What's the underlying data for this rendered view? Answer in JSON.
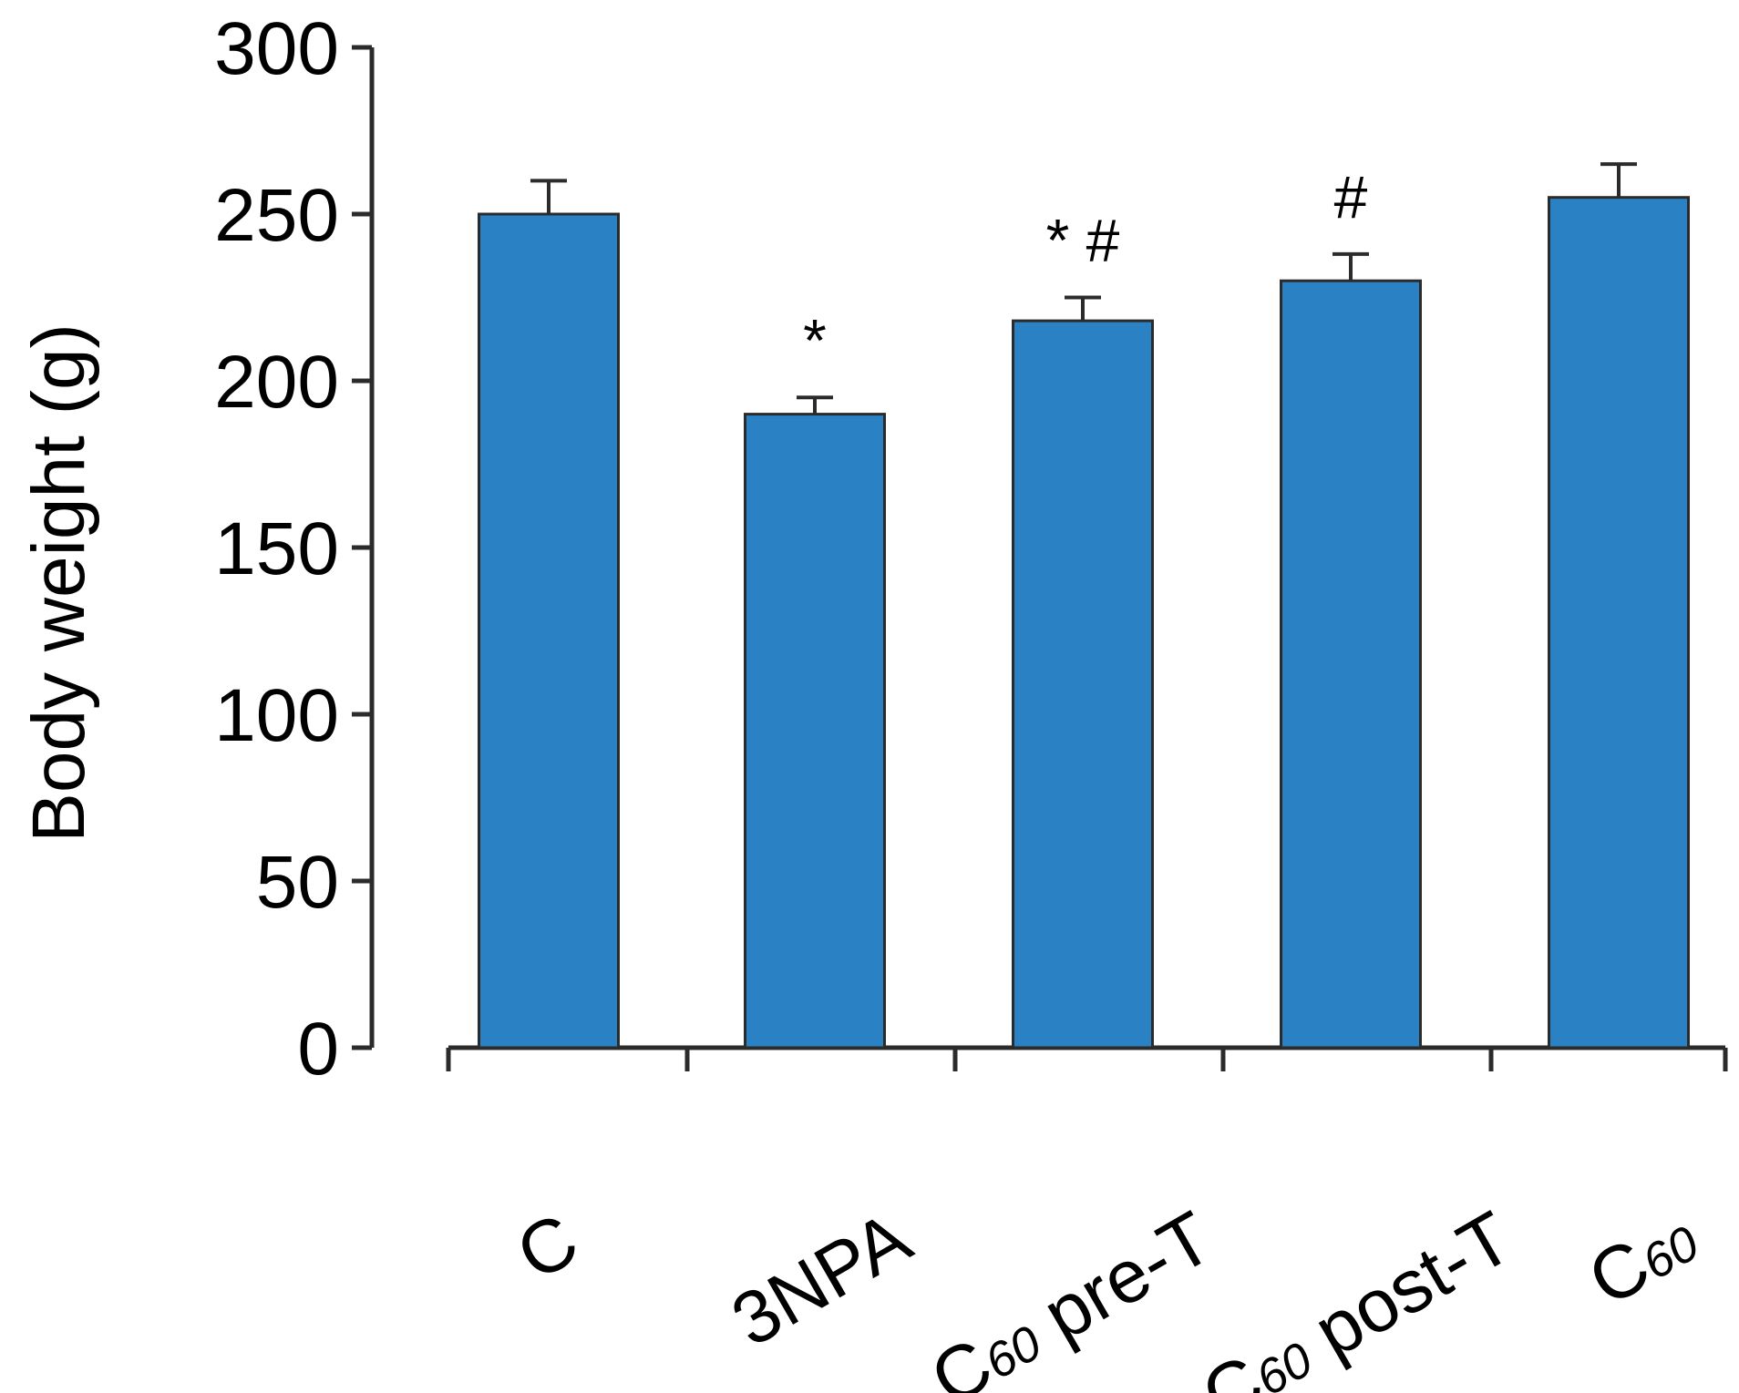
{
  "chart_data": {
    "type": "bar",
    "title": "",
    "xlabel": "",
    "ylabel": "Body weight (g)",
    "ylim": [
      0,
      300
    ],
    "yticks": [
      0,
      50,
      100,
      150,
      200,
      250,
      300
    ],
    "grid": false,
    "legend": "none",
    "bar_color": "#2a82c4",
    "bar_edge_color": "#2b2b2b",
    "categories": [
      {
        "label": "C",
        "subscript": ""
      },
      {
        "label": "3NPA",
        "subscript": ""
      },
      {
        "label": "C",
        "subscript": "60",
        "suffix": " pre-T"
      },
      {
        "label": "C",
        "subscript": "60",
        "suffix": " post-T"
      },
      {
        "label": "C",
        "subscript": "60",
        "suffix": ""
      }
    ],
    "values": [
      250,
      190,
      218,
      230,
      255
    ],
    "errors": [
      10,
      5,
      7,
      8,
      10
    ],
    "annotations": [
      "",
      "*",
      "* #",
      "#",
      ""
    ]
  }
}
